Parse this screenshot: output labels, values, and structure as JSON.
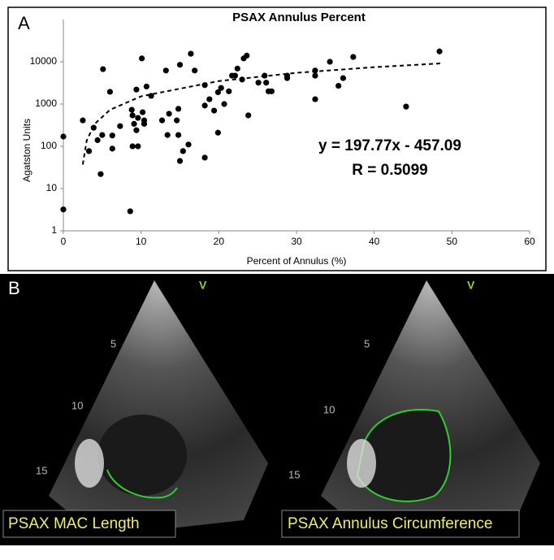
{
  "chart_data": {
    "type": "scatter",
    "title": "PSAX Annulus Percent",
    "x_label": "Percent of Annulus (%)",
    "y_label": "Agatston Units",
    "xlim": [
      0,
      60
    ],
    "xticks": [
      0,
      10,
      20,
      30,
      40,
      50,
      60
    ],
    "ylim": [
      1,
      100000
    ],
    "yticks": [
      1,
      10,
      100,
      1000,
      10000
    ],
    "log_scale_y": true,
    "series": [
      {
        "color": "#000000",
        "x": [
          0,
          0,
          2.5,
          3.3,
          3.9,
          4.4,
          4.8,
          5.0,
          5.1,
          6.0,
          6.3,
          6.3,
          7.3,
          8.6,
          8.8,
          8.9,
          8.9,
          9.1,
          9.4,
          9.4,
          9.6,
          9.6,
          10.1,
          10.2,
          10.4,
          10.4,
          10.7,
          11.3,
          12.7,
          13.2,
          13.4,
          13.6,
          14.6,
          14.8,
          14.8,
          15.0,
          15.0,
          15.4,
          16.1,
          16.4,
          16.9,
          18.2,
          18.2,
          18.2,
          18.8,
          19.4,
          19.9,
          19.9,
          20.3,
          20.7,
          21.3,
          21.7,
          22.1,
          22.4,
          23.0,
          23.2,
          23.6,
          23.8,
          25.1,
          25.9,
          26.1,
          26.4,
          26.8,
          28.8,
          28.8,
          32.4,
          32.4,
          32.4,
          34.3,
          35.4,
          36.0,
          37.3,
          44.1,
          48.4
        ],
        "values": [
          170,
          3.2,
          410,
          77,
          275,
          140,
          22,
          185,
          6700,
          1950,
          88,
          180,
          300,
          2.9,
          730,
          540,
          100,
          340,
          2200,
          240,
          470,
          100,
          12000,
          640,
          410,
          340,
          2600,
          1560,
          410,
          6200,
          185,
          590,
          410,
          770,
          185,
          8500,
          45,
          77,
          110,
          15500,
          6200,
          2800,
          920,
          54,
          1300,
          700,
          210,
          1900,
          2400,
          1000,
          2000,
          4700,
          4700,
          6900,
          3800,
          12000,
          14000,
          540,
          3200,
          4700,
          3200,
          2000,
          2000,
          4700,
          4100,
          6200,
          4700,
          1300,
          10000,
          2700,
          4100,
          13000,
          870,
          17600
        ]
      }
    ],
    "trendline": {
      "color": "#000000",
      "dashed": true,
      "x": [
        2.5,
        3,
        4,
        6,
        10,
        20,
        30,
        40,
        48.5
      ],
      "values": [
        37,
        136,
        334,
        730,
        1521,
        3498,
        5476,
        7454,
        9135
      ]
    },
    "annotations": [
      "y = 197.77x - 457.09",
      "R = 0.5099"
    ]
  },
  "panel_labels": [
    "A",
    "B"
  ],
  "images": [
    {
      "label": "PSAX MAC Length",
      "marker": "V",
      "depth_marks": [
        "5",
        "10",
        "15"
      ]
    },
    {
      "label": "PSAX Annulus Circumference",
      "marker": "V",
      "depth_marks": [
        "5",
        "10",
        "15"
      ]
    }
  ]
}
